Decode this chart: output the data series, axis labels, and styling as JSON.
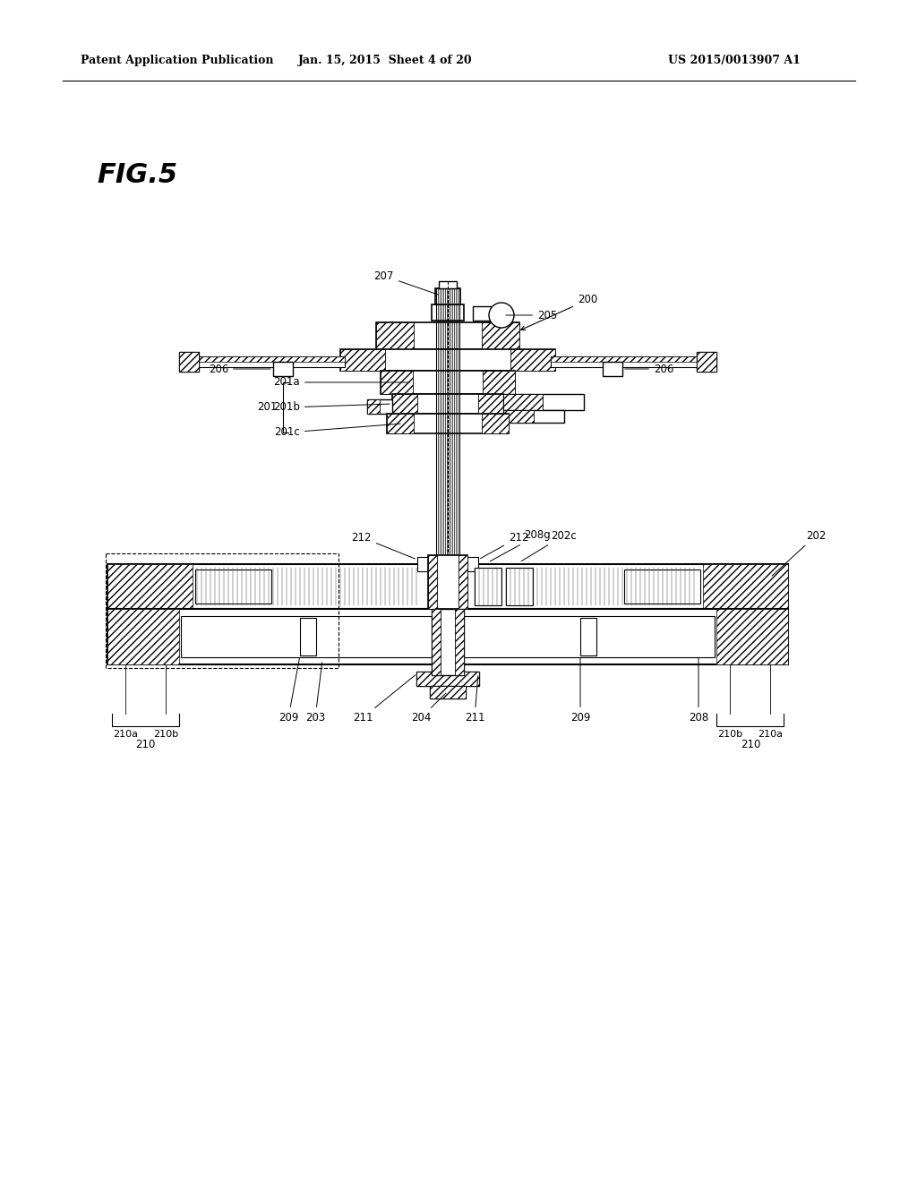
{
  "bg_color": "#ffffff",
  "title_left": "Patent Application Publication",
  "title_center": "Jan. 15, 2015  Sheet 4 of 20",
  "title_right": "US 2015/0013907 A1",
  "fig_label": "FIG.5"
}
